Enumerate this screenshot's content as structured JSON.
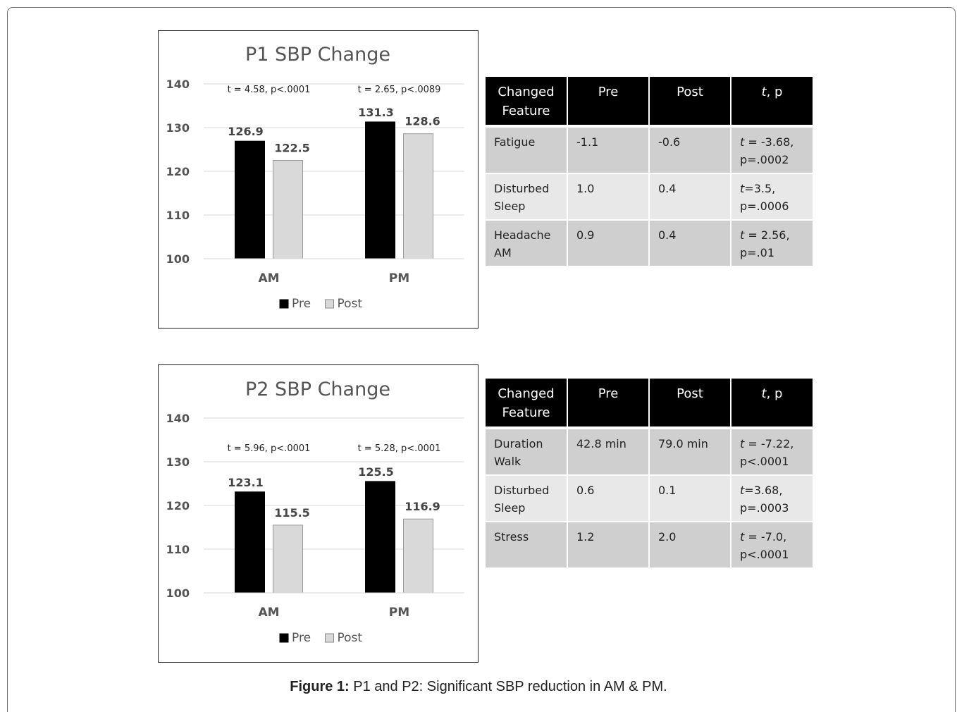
{
  "chart_data": [
    {
      "type": "bar",
      "title": "P1 SBP Change",
      "categories": [
        "AM",
        "PM"
      ],
      "series": [
        {
          "name": "Pre",
          "values": [
            126.9,
            131.3
          ],
          "color": "#000000"
        },
        {
          "name": "Post",
          "values": [
            122.5,
            128.6
          ],
          "color": "#d9d9d9"
        }
      ],
      "ylim": [
        100,
        140
      ],
      "yticks": [
        100,
        110,
        120,
        130,
        140
      ],
      "grid": true,
      "legend": "bottom-center",
      "annotations": [
        "t = 4.58, p<.0001",
        "t = 2.65, p<.0089"
      ]
    },
    {
      "type": "bar",
      "title": "P2 SBP Change",
      "categories": [
        "AM",
        "PM"
      ],
      "series": [
        {
          "name": "Pre",
          "values": [
            123.1,
            125.5
          ],
          "color": "#000000"
        },
        {
          "name": "Post",
          "values": [
            115.5,
            116.9
          ],
          "color": "#d9d9d9"
        }
      ],
      "ylim": [
        100,
        140
      ],
      "yticks": [
        100,
        110,
        120,
        130,
        140
      ],
      "grid": true,
      "legend": "bottom-center",
      "annotations": [
        "t = 5.96, p<.0001",
        "t = 5.28, p<.0001"
      ]
    }
  ],
  "tables": [
    {
      "headers": [
        "Changed Feature",
        "Pre",
        "Post",
        "t, p"
      ],
      "rows": [
        [
          "Fatigue",
          "-1.1",
          "-0.6",
          "t = -3.68, p=.0002"
        ],
        [
          "Disturbed Sleep",
          "1.0",
          "0.4",
          "t=3.5, p=.0006"
        ],
        [
          "Headache AM",
          "0.9",
          "0.4",
          "t = 2.56, p=.01"
        ]
      ]
    },
    {
      "headers": [
        "Changed Feature",
        "Pre",
        "Post",
        "t, p"
      ],
      "rows": [
        [
          "Duration Walk",
          "42.8 min",
          "79.0 min",
          "t = -7.22, p<.0001"
        ],
        [
          "Disturbed Sleep",
          "0.6",
          "0.1",
          "t=3.68, p=.0003"
        ],
        [
          "Stress",
          "1.2",
          "2.0",
          "t = -7.0, p<.0001"
        ]
      ]
    }
  ],
  "caption": {
    "label": "Figure 1:",
    "text": " P1 and P2: Significant SBP reduction in AM & PM."
  }
}
